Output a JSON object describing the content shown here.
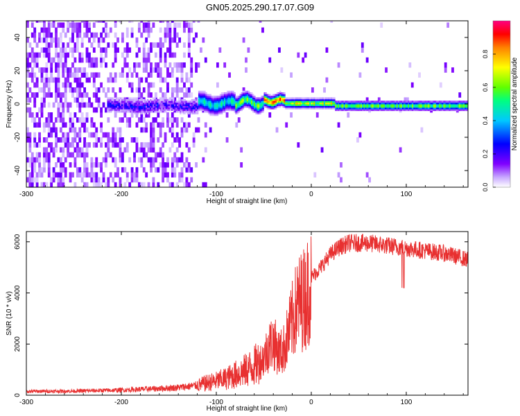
{
  "title": "GN05.2025.290.17.07.G09",
  "chart_data": [
    {
      "type": "heatmap",
      "name": "spectrogram",
      "xlabel": "Height of straight line (km)",
      "ylabel": "Frequency (Hz)",
      "xlim": [
        -300,
        165
      ],
      "ylim": [
        -50,
        50
      ],
      "xticks": [
        -300,
        -200,
        -100,
        0,
        100
      ],
      "yticks": [
        -40,
        -20,
        0,
        20,
        40
      ],
      "colorbar": {
        "label": "Normalized spectral amplitude",
        "range": [
          0.0,
          1.0
        ],
        "ticks": [
          0.0,
          0.2,
          0.4,
          0.6,
          0.8
        ],
        "tick_labels": [
          "0.0",
          "0.2",
          "0.4",
          "0.6",
          "0.8"
        ],
        "colormap": "rainbow (white-violet-blue-cyan-green-yellow-red-magenta)"
      },
      "description": "Noisy low-amplitude violet speckle across all frequencies for heights below about -115 km; a narrow band near 0 Hz from about -200 km upward, strengthening to yellow/red near -45 km to -30 km and persisting as a thin green/cyan line near -2 Hz up to 165 km."
    },
    {
      "type": "line",
      "name": "snr",
      "xlabel": "Height of straight line (km)",
      "ylabel": "SNR (10 * v/v)",
      "xlim": [
        -300,
        165
      ],
      "ylim": [
        0,
        6400
      ],
      "xticks": [
        -300,
        -200,
        -100,
        0,
        100
      ],
      "yticks": [
        0,
        2000,
        4000,
        6000
      ],
      "color": "#e83030",
      "series": [
        {
          "name": "SNR",
          "x": [
            -300,
            -250,
            -200,
            -160,
            -140,
            -120,
            -110,
            -100,
            -90,
            -80,
            -70,
            -60,
            -50,
            -45,
            -40,
            -35,
            -30,
            -25,
            -20,
            -15,
            -10,
            -5,
            0,
            10,
            20,
            30,
            40,
            50,
            60,
            70,
            80,
            90,
            100,
            110,
            120,
            130,
            140,
            150,
            165
          ],
          "y": [
            150,
            160,
            200,
            260,
            300,
            380,
            480,
            550,
            650,
            800,
            950,
            1150,
            1450,
            1900,
            2100,
            1700,
            1700,
            2300,
            2900,
            3500,
            3700,
            3900,
            4600,
            5000,
            5500,
            5800,
            5950,
            5950,
            5950,
            5900,
            5850,
            5800,
            5750,
            5700,
            5650,
            5600,
            5550,
            5450,
            5300
          ]
        }
      ]
    }
  ]
}
